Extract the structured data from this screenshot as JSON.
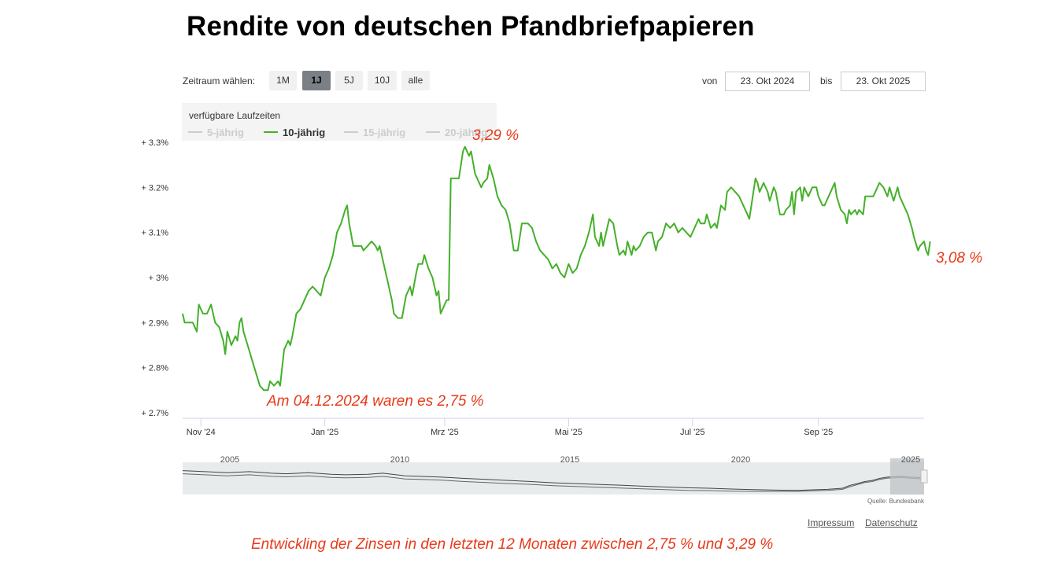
{
  "title": "Rendite von deutschen Pfandbriefpapieren",
  "toolbar": {
    "range_label": "Zeitraum wählen:",
    "buttons": [
      {
        "label": "1M",
        "active": false
      },
      {
        "label": "1J",
        "active": true
      },
      {
        "label": "5J",
        "active": false
      },
      {
        "label": "10J",
        "active": false
      },
      {
        "label": "alle",
        "active": false
      }
    ],
    "from_label": "von",
    "from_value": "23. Okt 2024",
    "to_label": "bis",
    "to_value": "23. Okt 2025"
  },
  "legend": {
    "title": "verfügbare Laufzeiten",
    "items": [
      {
        "label": "5-jährig",
        "active": false
      },
      {
        "label": "10-jährig",
        "active": true
      },
      {
        "label": "15-jährig",
        "active": false
      },
      {
        "label": "20-jährig",
        "active": false
      }
    ]
  },
  "annotations": {
    "max": "3,29 %",
    "last": "3,08 %",
    "min": "Am 04.12.2024 waren es 2,75 %",
    "summary": "Entwickling der Zinsen in den letzten 12 Monaten zwischen 2,75 % und 3,29 %"
  },
  "colors": {
    "series": "#44b02a",
    "annotation": "#e8391a",
    "navigator_fill": "#e8ebec",
    "navigator_handle": "#bfc3c5"
  },
  "chart_data": {
    "type": "line",
    "title": "Rendite von deutschen Pfandbriefpapieren",
    "series_name": "10-jährig",
    "x_unit": "days since 23. Okt 2024",
    "x_range": [
      0,
      365
    ],
    "ylim": [
      2.7,
      3.3
    ],
    "y_ticks": [
      {
        "value": 2.7,
        "label": "+ 2.7%"
      },
      {
        "value": 2.8,
        "label": "+ 2.8%"
      },
      {
        "value": 2.9,
        "label": "+ 2.9%"
      },
      {
        "value": 3.0,
        "label": "+ 3%"
      },
      {
        "value": 3.1,
        "label": "+ 3.1%"
      },
      {
        "value": 3.2,
        "label": "+ 3.2%"
      },
      {
        "value": 3.3,
        "label": "+ 3.3%"
      }
    ],
    "x_ticks": [
      {
        "day": 9,
        "label": "Nov '24"
      },
      {
        "day": 70,
        "label": "Jan '25"
      },
      {
        "day": 129,
        "label": "Mrz '25"
      },
      {
        "day": 190,
        "label": "Mai '25"
      },
      {
        "day": 251,
        "label": "Jul '25"
      },
      {
        "day": 313,
        "label": "Sep '25"
      }
    ],
    "points": [
      [
        0,
        2.92
      ],
      [
        1,
        2.9
      ],
      [
        3,
        2.9
      ],
      [
        5,
        2.9
      ],
      [
        7,
        2.88
      ],
      [
        8,
        2.94
      ],
      [
        10,
        2.92
      ],
      [
        12,
        2.92
      ],
      [
        14,
        2.94
      ],
      [
        16,
        2.9
      ],
      [
        18,
        2.89
      ],
      [
        20,
        2.86
      ],
      [
        21,
        2.83
      ],
      [
        22,
        2.88
      ],
      [
        24,
        2.85
      ],
      [
        26,
        2.87
      ],
      [
        27,
        2.86
      ],
      [
        28,
        2.9
      ],
      [
        29,
        2.91
      ],
      [
        30,
        2.88
      ],
      [
        32,
        2.85
      ],
      [
        34,
        2.82
      ],
      [
        36,
        2.79
      ],
      [
        38,
        2.76
      ],
      [
        40,
        2.75
      ],
      [
        42,
        2.75
      ],
      [
        43,
        2.77
      ],
      [
        45,
        2.76
      ],
      [
        47,
        2.77
      ],
      [
        48,
        2.76
      ],
      [
        50,
        2.84
      ],
      [
        52,
        2.86
      ],
      [
        53,
        2.85
      ],
      [
        54,
        2.87
      ],
      [
        56,
        2.92
      ],
      [
        58,
        2.93
      ],
      [
        60,
        2.95
      ],
      [
        62,
        2.97
      ],
      [
        64,
        2.98
      ],
      [
        66,
        2.97
      ],
      [
        68,
        2.96
      ],
      [
        70,
        3.0
      ],
      [
        72,
        3.02
      ],
      [
        74,
        3.05
      ],
      [
        76,
        3.1
      ],
      [
        78,
        3.12
      ],
      [
        80,
        3.15
      ],
      [
        81,
        3.16
      ],
      [
        82,
        3.12
      ],
      [
        84,
        3.07
      ],
      [
        86,
        3.07
      ],
      [
        88,
        3.07
      ],
      [
        89,
        3.06
      ],
      [
        91,
        3.07
      ],
      [
        93,
        3.08
      ],
      [
        95,
        3.07
      ],
      [
        96,
        3.06
      ],
      [
        97,
        3.07
      ],
      [
        99,
        3.03
      ],
      [
        101,
        2.99
      ],
      [
        103,
        2.95
      ],
      [
        104,
        2.92
      ],
      [
        106,
        2.91
      ],
      [
        108,
        2.91
      ],
      [
        110,
        2.96
      ],
      [
        112,
        2.98
      ],
      [
        113,
        2.96
      ],
      [
        115,
        3.01
      ],
      [
        116,
        3.03
      ],
      [
        118,
        3.03
      ],
      [
        119,
        3.05
      ],
      [
        121,
        3.02
      ],
      [
        123,
        3.0
      ],
      [
        125,
        2.96
      ],
      [
        126,
        2.97
      ],
      [
        127,
        2.92
      ],
      [
        129,
        2.94
      ],
      [
        130,
        2.95
      ],
      [
        131,
        2.95
      ],
      [
        132,
        3.22
      ],
      [
        134,
        3.22
      ],
      [
        136,
        3.22
      ],
      [
        138,
        3.28
      ],
      [
        139,
        3.29
      ],
      [
        141,
        3.27
      ],
      [
        142,
        3.28
      ],
      [
        144,
        3.23
      ],
      [
        145,
        3.22
      ],
      [
        147,
        3.2
      ],
      [
        148,
        3.21
      ],
      [
        150,
        3.22
      ],
      [
        151,
        3.25
      ],
      [
        153,
        3.22
      ],
      [
        155,
        3.18
      ],
      [
        157,
        3.16
      ],
      [
        159,
        3.15
      ],
      [
        161,
        3.12
      ],
      [
        163,
        3.06
      ],
      [
        165,
        3.06
      ],
      [
        167,
        3.12
      ],
      [
        168,
        3.12
      ],
      [
        170,
        3.12
      ],
      [
        172,
        3.11
      ],
      [
        174,
        3.08
      ],
      [
        176,
        3.06
      ],
      [
        178,
        3.05
      ],
      [
        180,
        3.04
      ],
      [
        182,
        3.02
      ],
      [
        184,
        3.03
      ],
      [
        186,
        3.01
      ],
      [
        188,
        3.0
      ],
      [
        190,
        3.03
      ],
      [
        192,
        3.01
      ],
      [
        194,
        3.02
      ],
      [
        196,
        3.05
      ],
      [
        198,
        3.07
      ],
      [
        200,
        3.1
      ],
      [
        202,
        3.14
      ],
      [
        203,
        3.09
      ],
      [
        205,
        3.07
      ],
      [
        206,
        3.1
      ],
      [
        207,
        3.07
      ],
      [
        208,
        3.09
      ],
      [
        210,
        3.13
      ],
      [
        212,
        3.12
      ],
      [
        214,
        3.07
      ],
      [
        215,
        3.05
      ],
      [
        217,
        3.06
      ],
      [
        218,
        3.05
      ],
      [
        219,
        3.08
      ],
      [
        221,
        3.05
      ],
      [
        222,
        3.07
      ],
      [
        223,
        3.06
      ],
      [
        225,
        3.07
      ],
      [
        227,
        3.09
      ],
      [
        229,
        3.1
      ],
      [
        231,
        3.1
      ],
      [
        233,
        3.06
      ],
      [
        234,
        3.08
      ],
      [
        236,
        3.09
      ],
      [
        238,
        3.12
      ],
      [
        240,
        3.11
      ],
      [
        242,
        3.12
      ],
      [
        244,
        3.1
      ],
      [
        246,
        3.11
      ],
      [
        248,
        3.1
      ],
      [
        250,
        3.09
      ],
      [
        252,
        3.11
      ],
      [
        254,
        3.13
      ],
      [
        255,
        3.12
      ],
      [
        257,
        3.12
      ],
      [
        258,
        3.14
      ],
      [
        260,
        3.11
      ],
      [
        262,
        3.12
      ],
      [
        263,
        3.11
      ],
      [
        265,
        3.16
      ],
      [
        267,
        3.15
      ],
      [
        268,
        3.19
      ],
      [
        270,
        3.2
      ],
      [
        272,
        3.19
      ],
      [
        274,
        3.18
      ],
      [
        276,
        3.16
      ],
      [
        278,
        3.14
      ],
      [
        279,
        3.13
      ],
      [
        280,
        3.16
      ],
      [
        282,
        3.22
      ],
      [
        283,
        3.21
      ],
      [
        284,
        3.19
      ],
      [
        286,
        3.21
      ],
      [
        288,
        3.19
      ],
      [
        289,
        3.17
      ],
      [
        291,
        3.2
      ],
      [
        292,
        3.19
      ],
      [
        294,
        3.14
      ],
      [
        296,
        3.14
      ],
      [
        297,
        3.15
      ],
      [
        299,
        3.16
      ],
      [
        300,
        3.19
      ],
      [
        301,
        3.14
      ],
      [
        302,
        3.19
      ],
      [
        304,
        3.2
      ],
      [
        305,
        3.17
      ],
      [
        306,
        3.2
      ],
      [
        308,
        3.18
      ],
      [
        310,
        3.2
      ],
      [
        312,
        3.2
      ],
      [
        313,
        3.18
      ],
      [
        315,
        3.16
      ],
      [
        316,
        3.16
      ],
      [
        318,
        3.18
      ],
      [
        320,
        3.2
      ],
      [
        321,
        3.21
      ],
      [
        322,
        3.18
      ],
      [
        324,
        3.15
      ],
      [
        326,
        3.14
      ],
      [
        327,
        3.12
      ],
      [
        328,
        3.15
      ],
      [
        329,
        3.14
      ],
      [
        331,
        3.15
      ],
      [
        332,
        3.14
      ],
      [
        333,
        3.15
      ],
      [
        335,
        3.14
      ],
      [
        336,
        3.18
      ],
      [
        338,
        3.18
      ],
      [
        340,
        3.18
      ],
      [
        341,
        3.19
      ],
      [
        343,
        3.21
      ],
      [
        345,
        3.2
      ],
      [
        347,
        3.18
      ],
      [
        348,
        3.2
      ],
      [
        350,
        3.17
      ],
      [
        352,
        3.2
      ],
      [
        353,
        3.18
      ],
      [
        355,
        3.16
      ],
      [
        357,
        3.14
      ],
      [
        359,
        3.11
      ],
      [
        360,
        3.09
      ],
      [
        362,
        3.06
      ],
      [
        363,
        3.07
      ],
      [
        365,
        3.08
      ],
      [
        366,
        3.06
      ],
      [
        367,
        3.05
      ],
      [
        368,
        3.08
      ]
    ]
  },
  "navigator": {
    "year_labels": [
      "2005",
      "2010",
      "2015",
      "2020",
      "2025"
    ],
    "source": "Quelle: Bundesbank",
    "series_a": [
      [
        0,
        0.8
      ],
      [
        3,
        0.76
      ],
      [
        6,
        0.72
      ],
      [
        9,
        0.76
      ],
      [
        12,
        0.7
      ],
      [
        14,
        0.68
      ],
      [
        17,
        0.72
      ],
      [
        20,
        0.66
      ],
      [
        22,
        0.64
      ],
      [
        25,
        0.66
      ],
      [
        27,
        0.7
      ],
      [
        30,
        0.6
      ],
      [
        32,
        0.58
      ],
      [
        35,
        0.55
      ],
      [
        38,
        0.5
      ],
      [
        41,
        0.46
      ],
      [
        44,
        0.42
      ],
      [
        47,
        0.38
      ],
      [
        50,
        0.33
      ],
      [
        53,
        0.3
      ],
      [
        56,
        0.27
      ],
      [
        59,
        0.24
      ],
      [
        62,
        0.2
      ],
      [
        65,
        0.17
      ],
      [
        68,
        0.14
      ],
      [
        71,
        0.12
      ],
      [
        74,
        0.09
      ],
      [
        77,
        0.07
      ],
      [
        80,
        0.05
      ],
      [
        83,
        0.04
      ],
      [
        85,
        0.06
      ],
      [
        87,
        0.08
      ],
      [
        89,
        0.12
      ],
      [
        90,
        0.23
      ],
      [
        91,
        0.3
      ],
      [
        92,
        0.38
      ],
      [
        93,
        0.42
      ],
      [
        94,
        0.5
      ],
      [
        95,
        0.55
      ],
      [
        97,
        0.58
      ],
      [
        98,
        0.55
      ],
      [
        100,
        0.52
      ]
    ],
    "series_b": [
      [
        0,
        0.68
      ],
      [
        3,
        0.64
      ],
      [
        6,
        0.6
      ],
      [
        9,
        0.64
      ],
      [
        12,
        0.58
      ],
      [
        14,
        0.56
      ],
      [
        17,
        0.6
      ],
      [
        20,
        0.54
      ],
      [
        22,
        0.52
      ],
      [
        25,
        0.54
      ],
      [
        27,
        0.58
      ],
      [
        30,
        0.48
      ],
      [
        32,
        0.46
      ],
      [
        35,
        0.43
      ],
      [
        38,
        0.38
      ],
      [
        41,
        0.34
      ],
      [
        44,
        0.3
      ],
      [
        47,
        0.27
      ],
      [
        50,
        0.22
      ],
      [
        53,
        0.19
      ],
      [
        56,
        0.16
      ],
      [
        59,
        0.13
      ],
      [
        62,
        0.1
      ],
      [
        65,
        0.07
      ],
      [
        68,
        0.04
      ],
      [
        71,
        0.03
      ],
      [
        74,
        0.01
      ],
      [
        77,
        0.0
      ],
      [
        80,
        0.0
      ],
      [
        83,
        0.0
      ],
      [
        85,
        0.02
      ],
      [
        87,
        0.04
      ],
      [
        89,
        0.08
      ],
      [
        90,
        0.18
      ],
      [
        91,
        0.26
      ],
      [
        92,
        0.34
      ],
      [
        93,
        0.38
      ],
      [
        94,
        0.46
      ],
      [
        95,
        0.51
      ],
      [
        97,
        0.54
      ],
      [
        98,
        0.51
      ],
      [
        100,
        0.48
      ]
    ]
  },
  "footer": {
    "impressum": "Impressum",
    "datenschutz": "Datenschutz"
  }
}
